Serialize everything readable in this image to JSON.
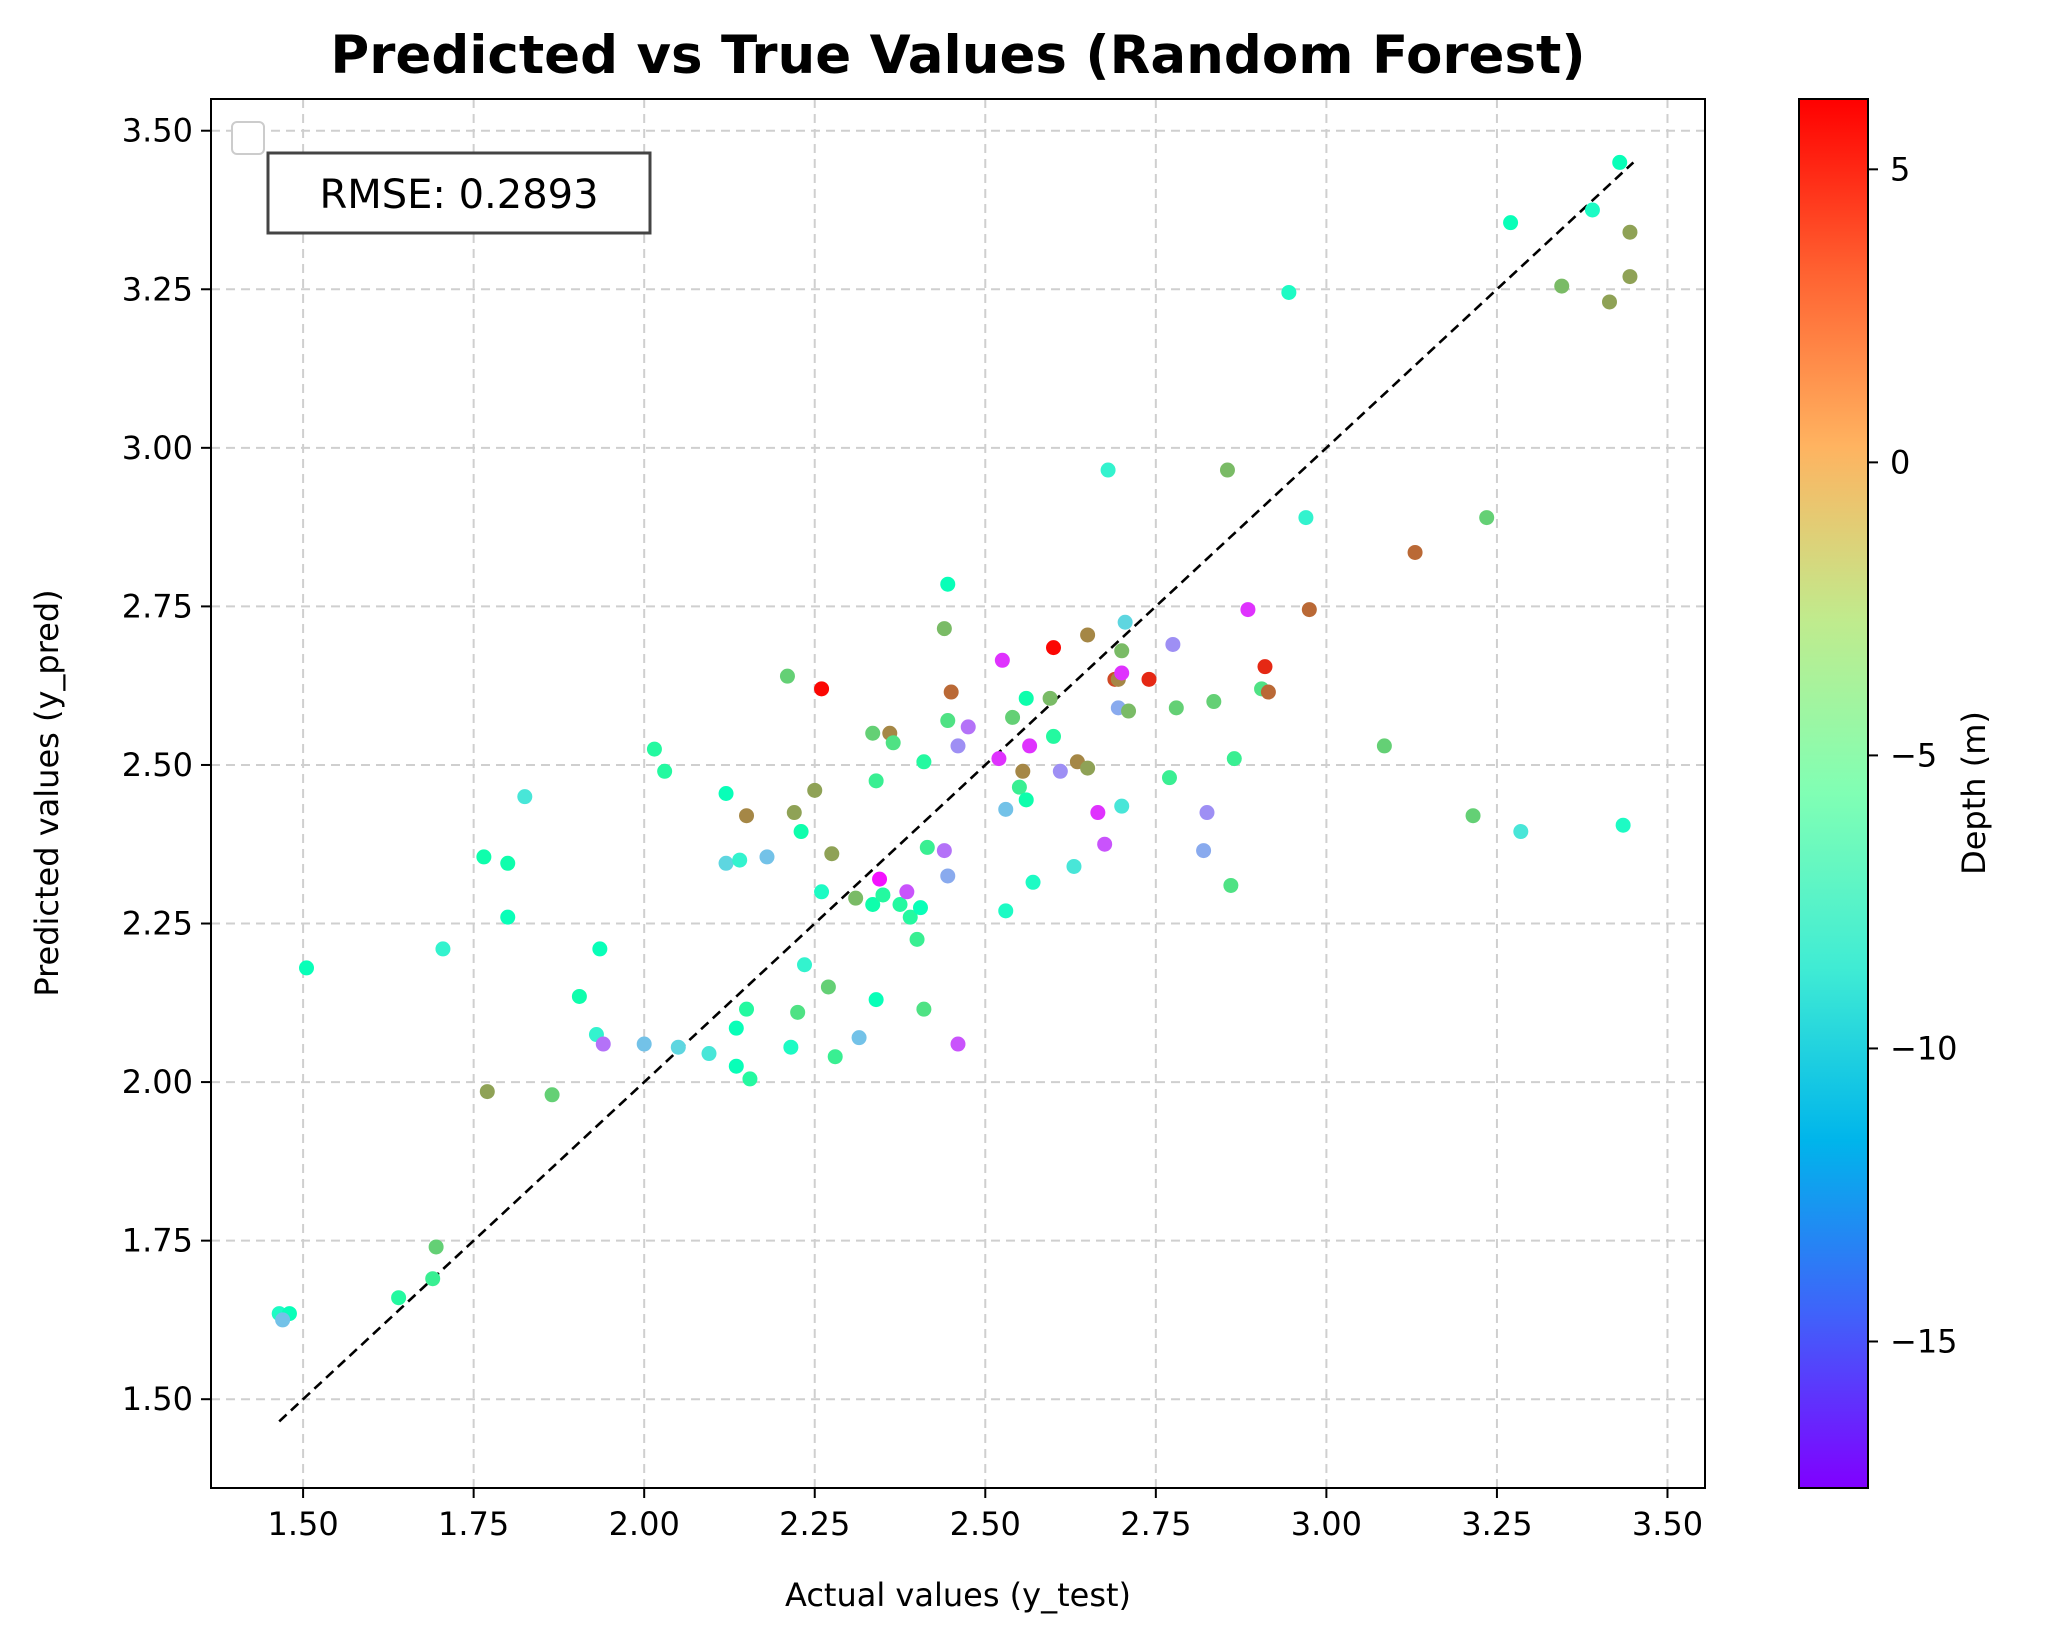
{
  "chart_data": {
    "type": "scatter",
    "title": "Predicted vs True Values (Random Forest)",
    "xlabel": "Actual values (y_test)",
    "ylabel": "Predicted values (y_pred)",
    "xlim": [
      1.365,
      3.555
    ],
    "ylim": [
      1.36,
      3.55
    ],
    "xticks": [
      1.5,
      1.75,
      2.0,
      2.25,
      2.5,
      2.75,
      3.0,
      3.25,
      3.5
    ],
    "xtick_labels": [
      "1.50",
      "1.75",
      "2.00",
      "2.25",
      "2.50",
      "2.75",
      "3.00",
      "3.25",
      "3.50"
    ],
    "yticks": [
      1.5,
      1.75,
      2.0,
      2.25,
      2.5,
      2.75,
      3.0,
      3.25,
      3.5
    ],
    "ytick_labels": [
      "1.50",
      "1.75",
      "2.00",
      "2.25",
      "2.50",
      "2.75",
      "3.00",
      "3.25",
      "3.50"
    ],
    "grid": true,
    "legend": "upper-left (empty)",
    "annotation": "RMSE: 0.2893",
    "reference_line": {
      "style": "dashed",
      "color": "#000000",
      "x": [
        1.465,
        3.45
      ],
      "y": [
        1.465,
        3.45
      ]
    },
    "colorbar": {
      "label": "Depth (m)",
      "colormap": "rainbow",
      "range": [
        -17.5,
        6.2
      ],
      "ticks": [
        5,
        0,
        -5,
        -10,
        -15
      ],
      "tick_labels": [
        "5",
        "0",
        "−5",
        "−10",
        "−15"
      ]
    },
    "series": [
      {
        "points": [
          [
            1.465,
            1.635,
            -7
          ],
          [
            1.48,
            1.635,
            -6
          ],
          [
            1.47,
            1.625,
            -11
          ],
          [
            1.505,
            2.18,
            -6
          ],
          [
            1.64,
            1.66,
            -4
          ],
          [
            1.69,
            1.69,
            -3
          ],
          [
            1.695,
            1.74,
            -1
          ],
          [
            1.705,
            2.21,
            -8
          ],
          [
            1.765,
            2.355,
            -5
          ],
          [
            1.77,
            1.985,
            1
          ],
          [
            1.8,
            2.26,
            -6
          ],
          [
            1.8,
            2.345,
            -5
          ],
          [
            1.825,
            2.45,
            -9
          ],
          [
            1.865,
            1.98,
            -1
          ],
          [
            1.905,
            2.135,
            -5
          ],
          [
            1.93,
            2.075,
            -8
          ],
          [
            1.935,
            2.21,
            -6
          ],
          [
            1.94,
            2.06,
            -14
          ],
          [
            2.0,
            2.06,
            -11
          ],
          [
            2.015,
            2.525,
            -4
          ],
          [
            2.03,
            2.49,
            -4
          ],
          [
            2.05,
            2.055,
            -10
          ],
          [
            2.095,
            2.045,
            -9
          ],
          [
            2.12,
            2.455,
            -6
          ],
          [
            2.12,
            2.345,
            -10
          ],
          [
            2.135,
            2.025,
            -6
          ],
          [
            2.135,
            2.085,
            -6
          ],
          [
            2.14,
            2.35,
            -8
          ],
          [
            2.15,
            2.115,
            -4
          ],
          [
            2.15,
            2.42,
            2
          ],
          [
            2.155,
            2.005,
            -4
          ],
          [
            2.18,
            2.355,
            -11
          ],
          [
            2.21,
            2.64,
            -1
          ],
          [
            2.215,
            2.055,
            -7
          ],
          [
            2.22,
            2.425,
            1
          ],
          [
            2.225,
            2.11,
            -2
          ],
          [
            2.23,
            2.395,
            -5
          ],
          [
            2.235,
            2.185,
            -8
          ],
          [
            2.25,
            2.46,
            1
          ],
          [
            2.26,
            2.62,
            6
          ],
          [
            2.26,
            2.3,
            -7
          ],
          [
            2.27,
            2.15,
            -1
          ],
          [
            2.275,
            2.36,
            1
          ],
          [
            2.28,
            2.04,
            -3
          ],
          [
            2.31,
            2.29,
            0
          ],
          [
            2.315,
            2.07,
            -11
          ],
          [
            2.335,
            2.55,
            -1
          ],
          [
            2.335,
            2.28,
            -5
          ],
          [
            2.34,
            2.475,
            -3
          ],
          [
            2.34,
            2.13,
            -6
          ],
          [
            2.345,
            2.32,
            -17
          ],
          [
            2.35,
            2.295,
            -4
          ],
          [
            2.36,
            2.55,
            2
          ],
          [
            2.365,
            2.535,
            -2
          ],
          [
            2.375,
            2.28,
            -4
          ],
          [
            2.385,
            2.3,
            -15
          ],
          [
            2.39,
            2.26,
            -4
          ],
          [
            2.4,
            2.225,
            -3
          ],
          [
            2.405,
            2.275,
            -6
          ],
          [
            2.41,
            2.115,
            -2
          ],
          [
            2.41,
            2.505,
            -4
          ],
          [
            2.415,
            2.37,
            -3
          ],
          [
            2.44,
            2.715,
            0
          ],
          [
            2.44,
            2.365,
            -14
          ],
          [
            2.445,
            2.785,
            -6
          ],
          [
            2.445,
            2.57,
            -2
          ],
          [
            2.445,
            2.325,
            -12
          ],
          [
            2.45,
            2.615,
            3
          ],
          [
            2.46,
            2.53,
            -13
          ],
          [
            2.46,
            2.06,
            -15
          ],
          [
            2.475,
            2.56,
            -14
          ],
          [
            2.52,
            2.51,
            -16
          ],
          [
            2.525,
            2.665,
            -16
          ],
          [
            2.53,
            2.27,
            -7
          ],
          [
            2.53,
            2.43,
            -11
          ],
          [
            2.54,
            2.575,
            -1
          ],
          [
            2.55,
            2.465,
            -3
          ],
          [
            2.555,
            2.49,
            2
          ],
          [
            2.56,
            2.445,
            -5
          ],
          [
            2.56,
            2.605,
            -5
          ],
          [
            2.565,
            2.53,
            -16
          ],
          [
            2.57,
            2.315,
            -7
          ],
          [
            2.595,
            2.605,
            0
          ],
          [
            2.6,
            2.545,
            -4
          ],
          [
            2.6,
            2.685,
            6
          ],
          [
            2.61,
            2.49,
            -13
          ],
          [
            2.63,
            2.34,
            -9
          ],
          [
            2.635,
            2.505,
            2
          ],
          [
            2.65,
            2.495,
            1
          ],
          [
            2.65,
            2.705,
            2
          ],
          [
            2.665,
            2.425,
            -16
          ],
          [
            2.675,
            2.375,
            -15
          ],
          [
            2.68,
            2.965,
            -8
          ],
          [
            2.69,
            2.635,
            4
          ],
          [
            2.695,
            2.635,
            2
          ],
          [
            2.695,
            2.59,
            -12
          ],
          [
            2.7,
            2.645,
            -16
          ],
          [
            2.7,
            2.68,
            0
          ],
          [
            2.7,
            2.435,
            -9
          ],
          [
            2.705,
            2.725,
            -10
          ],
          [
            2.71,
            2.585,
            0
          ],
          [
            2.74,
            2.635,
            5
          ],
          [
            2.77,
            2.48,
            -3
          ],
          [
            2.775,
            2.69,
            -13
          ],
          [
            2.78,
            2.59,
            -1
          ],
          [
            2.82,
            2.365,
            -12
          ],
          [
            2.825,
            2.425,
            -13
          ],
          [
            2.835,
            2.6,
            -1
          ],
          [
            2.855,
            2.965,
            0
          ],
          [
            2.86,
            2.31,
            -2
          ],
          [
            2.865,
            2.51,
            -3
          ],
          [
            2.885,
            2.745,
            -16
          ],
          [
            2.905,
            2.62,
            -2
          ],
          [
            2.91,
            2.655,
            5
          ],
          [
            2.915,
            2.615,
            3
          ],
          [
            2.945,
            3.245,
            -7
          ],
          [
            2.97,
            2.89,
            -8
          ],
          [
            2.975,
            2.745,
            3
          ],
          [
            3.085,
            2.53,
            -1
          ],
          [
            3.13,
            2.835,
            3
          ],
          [
            3.215,
            2.42,
            -1
          ],
          [
            3.235,
            2.89,
            -1
          ],
          [
            3.27,
            3.355,
            -6
          ],
          [
            3.285,
            2.395,
            -9
          ],
          [
            3.345,
            3.255,
            0
          ],
          [
            3.39,
            3.375,
            -7
          ],
          [
            3.415,
            3.23,
            1
          ],
          [
            3.43,
            3.45,
            -6
          ],
          [
            3.435,
            2.405,
            -7
          ],
          [
            3.445,
            3.34,
            1
          ],
          [
            3.445,
            3.27,
            1
          ]
        ]
      }
    ]
  }
}
